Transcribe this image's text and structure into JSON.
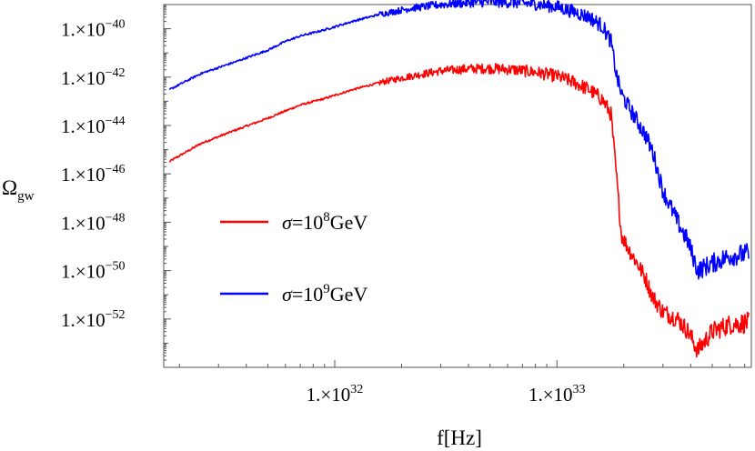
{
  "chart_data": {
    "type": "line",
    "title": "",
    "xlabel": "f[Hz]",
    "ylabel": {
      "main": "Ω",
      "sub": "gw"
    },
    "x_scale": "log",
    "y_scale": "log",
    "xlim": [
      1.7e+31,
      7.5e+33
    ],
    "ylim": [
      1e-54,
      1e-39
    ],
    "x_ticks": [
      {
        "value": 1e+32,
        "mantissa": "1.×10",
        "exp": "32"
      },
      {
        "value": 1e+33,
        "mantissa": "1.×10",
        "exp": "33"
      }
    ],
    "y_ticks": [
      {
        "value": 1e-40,
        "mantissa": "1.×10",
        "exp": "−40"
      },
      {
        "value": 1e-42,
        "mantissa": "1.×10",
        "exp": "−42"
      },
      {
        "value": 1e-44,
        "mantissa": "1.×10",
        "exp": "−44"
      },
      {
        "value": 1e-46,
        "mantissa": "1.×10",
        "exp": "−46"
      },
      {
        "value": 1e-48,
        "mantissa": "1.×10",
        "exp": "−48"
      },
      {
        "value": 1e-50,
        "mantissa": "1.×10",
        "exp": "−50"
      },
      {
        "value": 1e-52,
        "mantissa": "1.×10",
        "exp": "−52"
      }
    ],
    "grid": false,
    "legend_position": "left-center",
    "series": [
      {
        "name": "σ=10^8 GeV",
        "label_parts": {
          "sym": "σ",
          "eq": "=10",
          "exp": "8",
          "unit": "GeV"
        },
        "color": "#ff0000",
        "noise_dex": 0.12,
        "x": [
          1.8e+31,
          2.5e+31,
          3.5e+31,
          5e+31,
          6e+31,
          7e+31,
          9e+31,
          1.2e+32,
          1.6e+32,
          2.2e+32,
          3e+32,
          4e+32,
          5e+32,
          6.5e+32,
          8e+32,
          1e+33,
          1.2e+33,
          1.4e+33,
          1.6e+33,
          1.75e+33,
          1.85e+33,
          1.95e+33,
          2.1e+33,
          2.3e+33,
          2.5e+33,
          2.7e+33,
          3e+33,
          3.5e+33,
          3.9e+33,
          4.3e+33,
          5e+33,
          6e+33,
          7.3e+33
        ],
        "y": [
          3.2e-46,
          1.8e-45,
          6e-45,
          2e-44,
          4e-44,
          7e-44,
          1.3e-43,
          3e-43,
          6e-43,
          1.1e-42,
          1.8e-42,
          2.2e-42,
          2.3e-42,
          2e-42,
          1.6e-42,
          1.1e-42,
          6e-43,
          3e-43,
          1.2e-43,
          3e-44,
          1e-46,
          3e-49,
          8e-50,
          2e-50,
          5e-51,
          8e-52,
          2e-52,
          1e-52,
          3e-53,
          5e-54,
          3e-53,
          6e-53,
          7e-53
        ]
      },
      {
        "name": "σ=10^9 GeV",
        "label_parts": {
          "sym": "σ",
          "eq": "=10",
          "exp": "9",
          "unit": "GeV"
        },
        "color": "#0000ff",
        "noise_dex": 0.12,
        "x": [
          1.8e+31,
          2.5e+31,
          3.5e+31,
          5e+31,
          6e+31,
          7e+31,
          9e+31,
          1.2e+32,
          1.6e+32,
          2.2e+32,
          3e+32,
          4e+32,
          5e+32,
          6.5e+32,
          8e+32,
          1e+33,
          1.2e+33,
          1.4e+33,
          1.6e+33,
          1.75e+33,
          1.85e+33,
          1.95e+33,
          2.1e+33,
          2.3e+33,
          2.5e+33,
          2.7e+33,
          3e+33,
          3.5e+33,
          3.9e+33,
          4.3e+33,
          5e+33,
          6e+33,
          7.3e+33
        ],
        "y": [
          3e-43,
          1.4e-42,
          4e-42,
          1.3e-41,
          3e-41,
          5e-41,
          9e-41,
          2e-40,
          4e-40,
          7e-40,
          1e-39,
          1.2e-39,
          1.3e-39,
          1.2e-39,
          1.05e-39,
          8e-40,
          5e-40,
          3e-40,
          1.3e-40,
          3e-41,
          1.3e-42,
          2e-43,
          6e-44,
          1.5e-44,
          4e-45,
          8e-46,
          2e-47,
          1e-48,
          1.5e-49,
          1e-50,
          2e-50,
          4e-50,
          5e-50
        ]
      }
    ]
  }
}
